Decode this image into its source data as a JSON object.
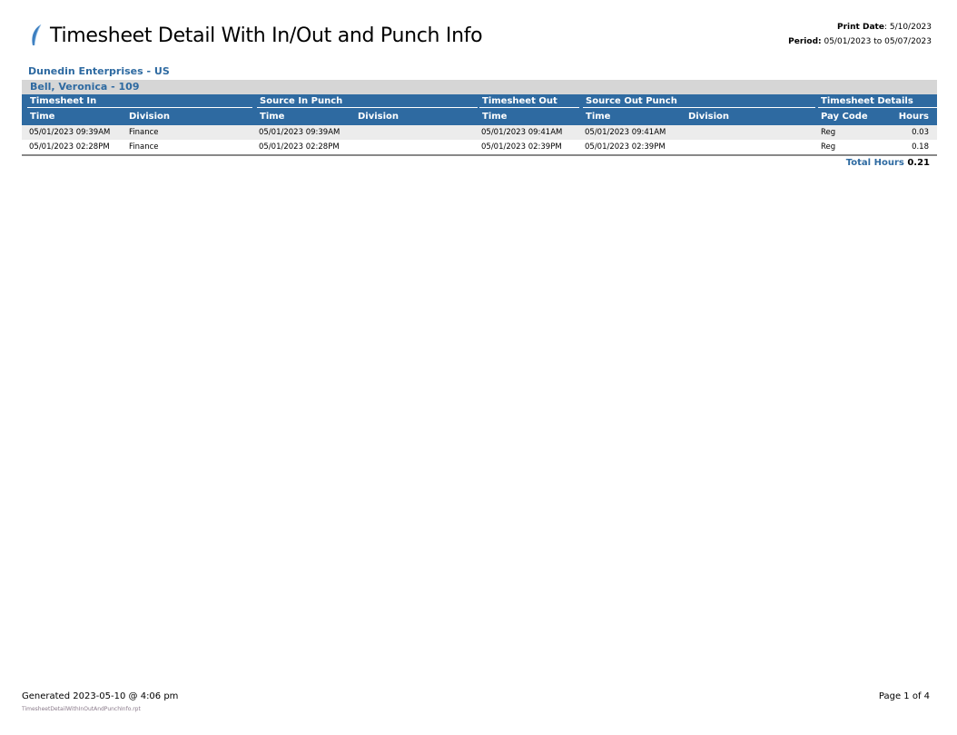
{
  "header": {
    "title": "Timesheet Detail With In/Out and Punch Info",
    "print_date_label": "Print Date",
    "print_date": "5/10/2023",
    "period_label": "Period:",
    "period": "05/01/2023 to 05/07/2023"
  },
  "company": "Dunedin Enterprises - US",
  "employee": "Bell, Veronica - 109",
  "table": {
    "groups": [
      "Timesheet In",
      "Source In Punch",
      "Timesheet Out",
      "Source Out Punch",
      "Timesheet Details"
    ],
    "columns": [
      "Time",
      "Division",
      "Time",
      "Division",
      "Time",
      "Time",
      "Division",
      "Pay Code",
      "Hours"
    ],
    "rows": [
      [
        "05/01/2023  09:39AM",
        "Finance",
        "05/01/2023  09:39AM",
        "",
        "05/01/2023  09:41AM",
        "05/01/2023  09:41AM",
        "",
        "Reg",
        "0.03"
      ],
      [
        "05/01/2023  02:28PM",
        "Finance",
        "05/01/2023  02:28PM",
        "",
        "05/01/2023  02:39PM",
        "05/01/2023  02:39PM",
        "",
        "Reg",
        "0.18"
      ]
    ],
    "total_label": "Total Hours",
    "total_value": "0.21"
  },
  "footer": {
    "generated": "Generated 2023-05-10 @  4:06 pm",
    "file": "TimesheetDetailWithInOutAndPunchInfo.rpt",
    "page": "Page 1 of 4"
  },
  "colors": {
    "accent": "#2e6aa1",
    "band": "#d6d6d6"
  }
}
